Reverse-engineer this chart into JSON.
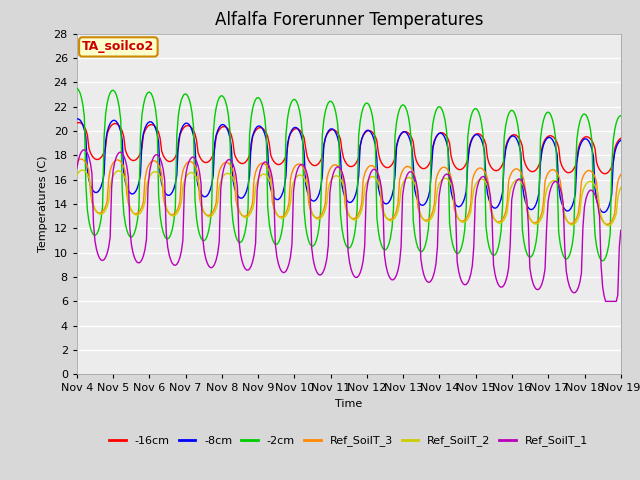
{
  "title": "Alfalfa Forerunner Temperatures",
  "xlabel": "Time",
  "ylabel": "Temperatures (C)",
  "ylim": [
    0,
    28
  ],
  "yticks": [
    0,
    2,
    4,
    6,
    8,
    10,
    12,
    14,
    16,
    18,
    20,
    22,
    24,
    26,
    28
  ],
  "annotation": "TA_soilco2",
  "annotation_color": "#cc0000",
  "annotation_bg": "#ffffcc",
  "annotation_border": "#cc8800",
  "series": [
    {
      "label": "-16cm",
      "color": "#ff0000"
    },
    {
      "label": "-8cm",
      "color": "#0000ff"
    },
    {
      "label": "-2cm",
      "color": "#00cc00"
    },
    {
      "label": "Ref_SoilT_3",
      "color": "#ff8800"
    },
    {
      "label": "Ref_SoilT_2",
      "color": "#cccc00"
    },
    {
      "label": "Ref_SoilT_1",
      "color": "#bb00bb"
    }
  ],
  "xtick_labels": [
    "Nov 4",
    "Nov 5",
    "Nov 6",
    "Nov 7",
    "Nov 8",
    "Nov 9",
    "Nov 10",
    "Nov 11",
    "Nov 12",
    "Nov 13",
    "Nov 14",
    "Nov 15",
    "Nov 16",
    "Nov 17",
    "Nov 18",
    "Nov 19"
  ],
  "background_color": "#d8d8d8",
  "plot_bg_color": "#ececec",
  "grid_color": "#ffffff",
  "title_fontsize": 12,
  "legend_fontsize": 8,
  "axis_fontsize": 8,
  "n_days": 15,
  "n_points": 360
}
